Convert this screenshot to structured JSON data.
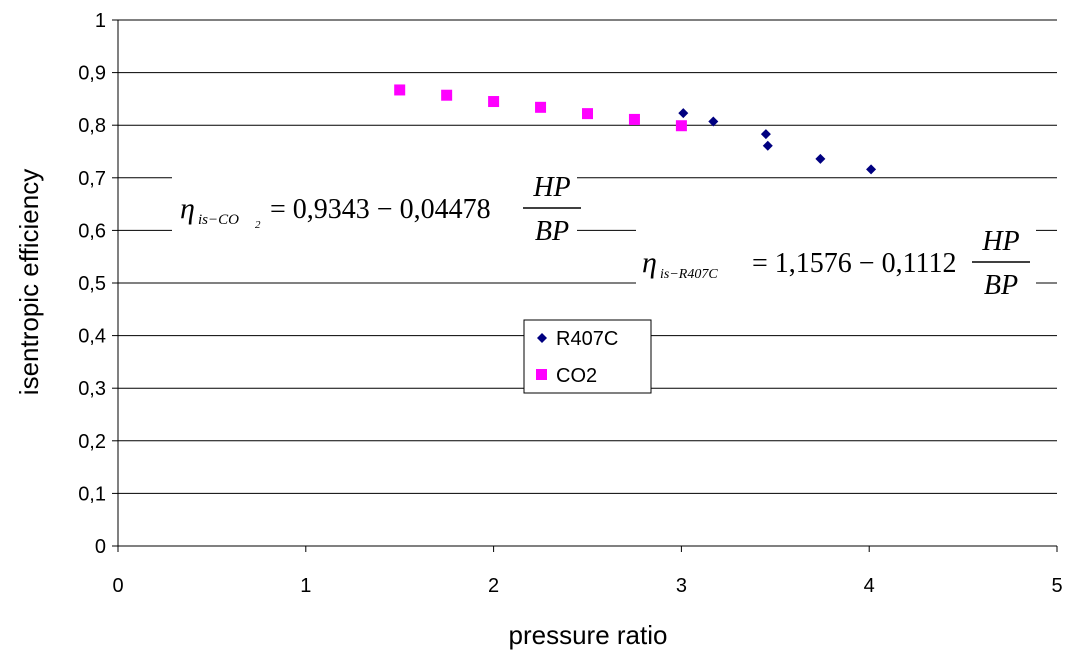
{
  "chart_data": {
    "type": "scatter",
    "xlabel": "pressure ratio",
    "ylabel": "isentropic efficiency",
    "xlim": [
      0,
      5
    ],
    "ylim": [
      0,
      1
    ],
    "x_ticks": [
      "0",
      "1",
      "2",
      "3",
      "4",
      "5"
    ],
    "y_ticks": [
      "0",
      "0,1",
      "0,2",
      "0,3",
      "0,4",
      "0,5",
      "0,6",
      "0,7",
      "0,8",
      "0,9",
      "1"
    ],
    "grid": "horizontal",
    "legend_placement": "center",
    "series": [
      {
        "name": "R407C",
        "marker": "diamond",
        "color": "#000080",
        "x": [
          3.01,
          3.17,
          3.45,
          3.46,
          3.74,
          4.01
        ],
        "y": [
          0.823,
          0.807,
          0.783,
          0.761,
          0.736,
          0.716
        ]
      },
      {
        "name": "CO2",
        "marker": "square",
        "color": "#FF00FF",
        "x": [
          1.5,
          1.75,
          2.0,
          2.25,
          2.5,
          2.75,
          3.0
        ],
        "y": [
          0.867,
          0.857,
          0.845,
          0.834,
          0.822,
          0.811,
          0.799
        ]
      }
    ],
    "annotations": {
      "co2": {
        "eta": "η",
        "sub": "is−CO",
        "sub2": "2",
        "rhs": "= 0,9343 − 0,04478",
        "num": "HP",
        "den": "BP"
      },
      "r407c": {
        "eta": "η",
        "sub": "is−R407C",
        "rhs": "= 1,1576 − 0,1112",
        "num": "HP",
        "den": "BP"
      }
    }
  }
}
